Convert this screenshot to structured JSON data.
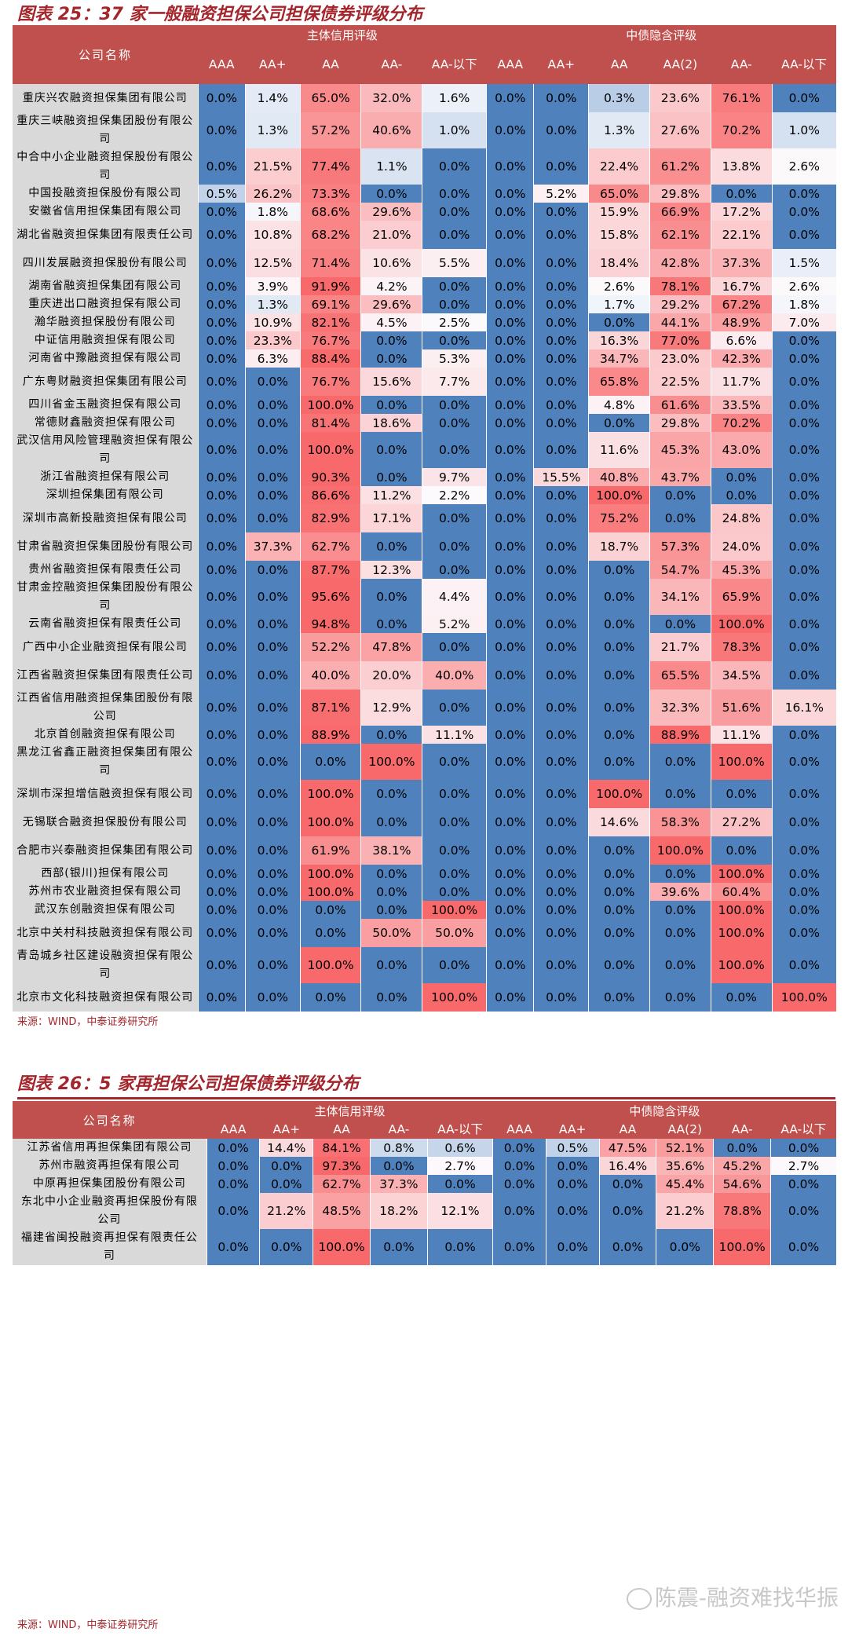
{
  "palette": {
    "header_bg": "#c0504d",
    "title_red": "#a4262c",
    "name_bg": "#d9d9d9",
    "zero_blue": "#4f81bd",
    "high_red": "#f8696b",
    "mid_white": "#fcfcff"
  },
  "table1": {
    "title": "图表 25：37 家一般融资担保公司担保债券评级分布",
    "source": "来源：WIND，中泰证券研究所",
    "company_header": "公司名称",
    "group_labels": [
      "主体信用评级",
      "中债隐含评级"
    ],
    "columns": [
      "AAA",
      "AA+",
      "AA",
      "AA-",
      "AA-以下",
      "AAA",
      "AA+",
      "AA",
      "AA(2)",
      "AA-",
      "AA-以下"
    ],
    "rows": [
      {
        "name": "重庆兴农融资担保集团有限公司",
        "values": [
          "0.0%",
          "1.4%",
          "65.0%",
          "32.0%",
          "1.6%",
          "0.0%",
          "0.0%",
          "0.3%",
          "23.6%",
          "76.1%",
          "0.0%"
        ]
      },
      {
        "name": "重庆三峡融资担保集团股份有限公司",
        "values": [
          "0.0%",
          "1.3%",
          "57.2%",
          "40.6%",
          "1.0%",
          "0.0%",
          "0.0%",
          "1.3%",
          "27.6%",
          "70.2%",
          "1.0%"
        ]
      },
      {
        "name": "中合中小企业融资担保股份有限公司",
        "values": [
          "0.0%",
          "21.5%",
          "77.4%",
          "1.1%",
          "0.0%",
          "0.0%",
          "0.0%",
          "22.4%",
          "61.2%",
          "13.8%",
          "2.6%"
        ]
      },
      {
        "name": "中国投融资担保股份有限公司",
        "values": [
          "0.5%",
          "26.2%",
          "73.3%",
          "0.0%",
          "0.0%",
          "0.0%",
          "5.2%",
          "65.0%",
          "29.8%",
          "0.0%",
          "0.0%"
        ]
      },
      {
        "name": "安徽省信用担保集团有限公司",
        "values": [
          "0.0%",
          "1.8%",
          "68.6%",
          "29.6%",
          "0.0%",
          "0.0%",
          "0.0%",
          "15.9%",
          "66.9%",
          "17.2%",
          "0.0%"
        ]
      },
      {
        "name": "湖北省融资担保集团有限责任公司",
        "values": [
          "0.0%",
          "10.8%",
          "68.2%",
          "21.0%",
          "0.0%",
          "0.0%",
          "0.0%",
          "15.8%",
          "62.1%",
          "22.1%",
          "0.0%"
        ]
      },
      {
        "name": "四川发展融资担保股份有限公司",
        "values": [
          "0.0%",
          "12.5%",
          "71.4%",
          "10.6%",
          "5.5%",
          "0.0%",
          "0.0%",
          "18.4%",
          "42.8%",
          "37.3%",
          "1.5%"
        ]
      },
      {
        "name": "湖南省融资担保集团有限公司",
        "values": [
          "0.0%",
          "3.9%",
          "91.9%",
          "4.2%",
          "0.0%",
          "0.0%",
          "0.0%",
          "2.6%",
          "78.1%",
          "16.7%",
          "2.6%"
        ]
      },
      {
        "name": "重庆进出口融资担保有限公司",
        "values": [
          "0.0%",
          "1.3%",
          "69.1%",
          "29.6%",
          "0.0%",
          "0.0%",
          "0.0%",
          "1.7%",
          "29.2%",
          "67.2%",
          "1.8%"
        ]
      },
      {
        "name": "瀚华融资担保股份有限公司",
        "values": [
          "0.0%",
          "10.9%",
          "82.1%",
          "4.5%",
          "2.5%",
          "0.0%",
          "0.0%",
          "0.0%",
          "44.1%",
          "48.9%",
          "7.0%"
        ]
      },
      {
        "name": "中证信用融资担保有限公司",
        "values": [
          "0.0%",
          "23.3%",
          "76.7%",
          "0.0%",
          "0.0%",
          "0.0%",
          "0.0%",
          "16.3%",
          "77.0%",
          "6.6%",
          "0.0%"
        ]
      },
      {
        "name": "河南省中豫融资担保有限公司",
        "values": [
          "0.0%",
          "6.3%",
          "88.4%",
          "0.0%",
          "5.3%",
          "0.0%",
          "0.0%",
          "34.7%",
          "23.0%",
          "42.3%",
          "0.0%"
        ]
      },
      {
        "name": "广东粤财融资担保集团有限公司",
        "values": [
          "0.0%",
          "0.0%",
          "76.7%",
          "15.6%",
          "7.7%",
          "0.0%",
          "0.0%",
          "65.8%",
          "22.5%",
          "11.7%",
          "0.0%"
        ]
      },
      {
        "name": "四川省金玉融资担保有限公司",
        "values": [
          "0.0%",
          "0.0%",
          "100.0%",
          "0.0%",
          "0.0%",
          "0.0%",
          "0.0%",
          "4.8%",
          "61.6%",
          "33.5%",
          "0.0%"
        ]
      },
      {
        "name": "常德财鑫融资担保有限公司",
        "values": [
          "0.0%",
          "0.0%",
          "81.4%",
          "18.6%",
          "0.0%",
          "0.0%",
          "0.0%",
          "0.0%",
          "29.8%",
          "70.2%",
          "0.0%"
        ]
      },
      {
        "name": "武汉信用风险管理融资担保有限公司",
        "values": [
          "0.0%",
          "0.0%",
          "100.0%",
          "0.0%",
          "0.0%",
          "0.0%",
          "0.0%",
          "11.6%",
          "45.3%",
          "43.0%",
          "0.0%"
        ]
      },
      {
        "name": "浙江省融资担保有限公司",
        "values": [
          "0.0%",
          "0.0%",
          "90.3%",
          "0.0%",
          "9.7%",
          "0.0%",
          "15.5%",
          "40.8%",
          "43.7%",
          "0.0%",
          "0.0%"
        ]
      },
      {
        "name": "深圳担保集团有限公司",
        "values": [
          "0.0%",
          "0.0%",
          "86.6%",
          "11.2%",
          "2.2%",
          "0.0%",
          "0.0%",
          "100.0%",
          "0.0%",
          "0.0%",
          "0.0%"
        ]
      },
      {
        "name": "深圳市高新投融资担保有限公司",
        "values": [
          "0.0%",
          "0.0%",
          "82.9%",
          "17.1%",
          "0.0%",
          "0.0%",
          "0.0%",
          "75.2%",
          "0.0%",
          "24.8%",
          "0.0%"
        ]
      },
      {
        "name": "甘肃省融资担保集团股份有限公司",
        "values": [
          "0.0%",
          "37.3%",
          "62.7%",
          "0.0%",
          "0.0%",
          "0.0%",
          "0.0%",
          "18.7%",
          "57.3%",
          "24.0%",
          "0.0%"
        ]
      },
      {
        "name": "贵州省融资担保有限责任公司",
        "values": [
          "0.0%",
          "0.0%",
          "87.7%",
          "12.3%",
          "0.0%",
          "0.0%",
          "0.0%",
          "0.0%",
          "54.7%",
          "45.3%",
          "0.0%"
        ]
      },
      {
        "name": "甘肃金控融资担保集团股份有限公司",
        "values": [
          "0.0%",
          "0.0%",
          "95.6%",
          "0.0%",
          "4.4%",
          "0.0%",
          "0.0%",
          "0.0%",
          "34.1%",
          "65.9%",
          "0.0%"
        ]
      },
      {
        "name": "云南省融资担保有限责任公司",
        "values": [
          "0.0%",
          "0.0%",
          "94.8%",
          "0.0%",
          "5.2%",
          "0.0%",
          "0.0%",
          "0.0%",
          "0.0%",
          "100.0%",
          "0.0%"
        ]
      },
      {
        "name": "广西中小企业融资担保有限公司",
        "values": [
          "0.0%",
          "0.0%",
          "52.2%",
          "47.8%",
          "0.0%",
          "0.0%",
          "0.0%",
          "0.0%",
          "21.7%",
          "78.3%",
          "0.0%"
        ]
      },
      {
        "name": "江西省融资担保集团有限责任公司",
        "values": [
          "0.0%",
          "0.0%",
          "40.0%",
          "20.0%",
          "40.0%",
          "0.0%",
          "0.0%",
          "0.0%",
          "65.5%",
          "34.5%",
          "0.0%"
        ]
      },
      {
        "name": "江西省信用融资担保集团股份有限公司",
        "values": [
          "0.0%",
          "0.0%",
          "87.1%",
          "12.9%",
          "0.0%",
          "0.0%",
          "0.0%",
          "0.0%",
          "32.3%",
          "51.6%",
          "16.1%"
        ]
      },
      {
        "name": "北京首创融资担保有限公司",
        "values": [
          "0.0%",
          "0.0%",
          "88.9%",
          "0.0%",
          "11.1%",
          "0.0%",
          "0.0%",
          "0.0%",
          "88.9%",
          "11.1%",
          "0.0%"
        ]
      },
      {
        "name": "黑龙江省鑫正融资担保集团有限公司",
        "values": [
          "0.0%",
          "0.0%",
          "0.0%",
          "100.0%",
          "0.0%",
          "0.0%",
          "0.0%",
          "0.0%",
          "0.0%",
          "100.0%",
          "0.0%"
        ]
      },
      {
        "name": "深圳市深担增信融资担保有限公司",
        "values": [
          "0.0%",
          "0.0%",
          "100.0%",
          "0.0%",
          "0.0%",
          "0.0%",
          "0.0%",
          "100.0%",
          "0.0%",
          "0.0%",
          "0.0%"
        ]
      },
      {
        "name": "无锡联合融资担保股份有限公司",
        "values": [
          "0.0%",
          "0.0%",
          "100.0%",
          "0.0%",
          "0.0%",
          "0.0%",
          "0.0%",
          "14.6%",
          "58.3%",
          "27.2%",
          "0.0%"
        ]
      },
      {
        "name": "合肥市兴泰融资担保集团有限公司",
        "values": [
          "0.0%",
          "0.0%",
          "61.9%",
          "38.1%",
          "0.0%",
          "0.0%",
          "0.0%",
          "0.0%",
          "100.0%",
          "0.0%",
          "0.0%"
        ]
      },
      {
        "name": "西部(银川)担保有限公司",
        "values": [
          "0.0%",
          "0.0%",
          "100.0%",
          "0.0%",
          "0.0%",
          "0.0%",
          "0.0%",
          "0.0%",
          "0.0%",
          "100.0%",
          "0.0%"
        ]
      },
      {
        "name": "苏州市农业融资担保有限公司",
        "values": [
          "0.0%",
          "0.0%",
          "100.0%",
          "0.0%",
          "0.0%",
          "0.0%",
          "0.0%",
          "0.0%",
          "39.6%",
          "60.4%",
          "0.0%"
        ]
      },
      {
        "name": "武汉东创融资担保有限公司",
        "values": [
          "0.0%",
          "0.0%",
          "0.0%",
          "0.0%",
          "100.0%",
          "0.0%",
          "0.0%",
          "0.0%",
          "0.0%",
          "100.0%",
          "0.0%"
        ]
      },
      {
        "name": "北京中关村科技融资担保有限公司",
        "values": [
          "0.0%",
          "0.0%",
          "0.0%",
          "50.0%",
          "50.0%",
          "0.0%",
          "0.0%",
          "0.0%",
          "0.0%",
          "100.0%",
          "0.0%"
        ]
      },
      {
        "name": "青岛城乡社区建设融资担保有限公司",
        "values": [
          "0.0%",
          "0.0%",
          "100.0%",
          "0.0%",
          "0.0%",
          "0.0%",
          "0.0%",
          "0.0%",
          "0.0%",
          "100.0%",
          "0.0%"
        ]
      },
      {
        "name": "北京市文化科技融资担保有限公司",
        "values": [
          "0.0%",
          "0.0%",
          "0.0%",
          "0.0%",
          "100.0%",
          "0.0%",
          "0.0%",
          "0.0%",
          "0.0%",
          "0.0%",
          "100.0%"
        ]
      }
    ]
  },
  "table2": {
    "title": "图表 26：5 家再担保公司担保债券评级分布",
    "source": "来源：WIND，中泰证券研究所",
    "company_header": "公司名称",
    "group_labels": [
      "主体信用评级",
      "中债隐含评级"
    ],
    "columns": [
      "AAA",
      "AA+",
      "AA",
      "AA-",
      "AA-以下",
      "AAA",
      "AA+",
      "AA",
      "AA(2)",
      "AA-",
      "AA-以下"
    ],
    "rows": [
      {
        "name": "江苏省信用再担保集团有限公司",
        "values": [
          "0.0%",
          "14.4%",
          "84.1%",
          "0.8%",
          "0.6%",
          "0.0%",
          "0.5%",
          "47.5%",
          "52.1%",
          "0.0%",
          "0.0%"
        ]
      },
      {
        "name": "苏州市融资再担保有限公司",
        "values": [
          "0.0%",
          "0.0%",
          "97.3%",
          "0.0%",
          "2.7%",
          "0.0%",
          "0.0%",
          "16.4%",
          "35.6%",
          "45.2%",
          "2.7%"
        ]
      },
      {
        "name": "中原再担保集团股份有限公司",
        "values": [
          "0.0%",
          "0.0%",
          "62.7%",
          "37.3%",
          "0.0%",
          "0.0%",
          "0.0%",
          "0.0%",
          "45.4%",
          "54.6%",
          "0.0%"
        ]
      },
      {
        "name": "东北中小企业融资再担保股份有限公司",
        "values": [
          "0.0%",
          "21.2%",
          "48.5%",
          "18.2%",
          "12.1%",
          "0.0%",
          "0.0%",
          "0.0%",
          "21.2%",
          "78.8%",
          "0.0%"
        ]
      },
      {
        "name": "福建省闽投融资再担保有限责任公司",
        "values": [
          "0.0%",
          "0.0%",
          "100.0%",
          "0.0%",
          "0.0%",
          "0.0%",
          "0.0%",
          "0.0%",
          "0.0%",
          "100.0%",
          "0.0%"
        ]
      }
    ]
  },
  "watermark": {
    "icon": "weibo-icon",
    "text": "陈震-融资难找华振"
  }
}
